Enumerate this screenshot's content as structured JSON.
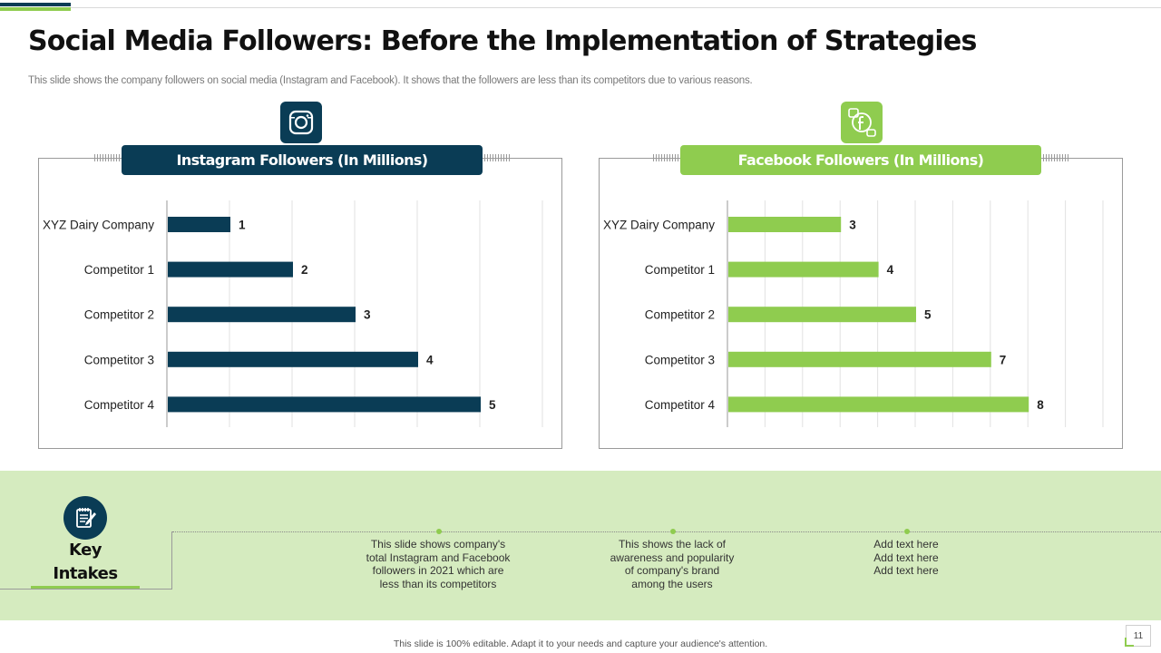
{
  "slide": {
    "title": "Social Media Followers: Before the Implementation of Strategies",
    "subtitle": "This slide shows the company followers on social media (Instagram and Facebook). It shows that the followers are less than its competitors due to various reasons.",
    "footer": "This slide is 100% editable.  Adapt it to your needs and capture your audience's attention.",
    "page_number": "11"
  },
  "colors": {
    "dark": "#0a3c55",
    "green": "#8fcc4f",
    "band": "#d5ebbf"
  },
  "icons": {
    "instagram": "instagram-icon",
    "facebook": "facebook-chat-icon",
    "key": "notepad-pen-icon"
  },
  "chart_data": [
    {
      "type": "bar",
      "orientation": "horizontal",
      "title": "Instagram Followers (In Millions)",
      "categories": [
        "XYZ Dairy Company",
        "Competitor 1",
        "Competitor 2",
        "Competitor 3",
        "Competitor 4"
      ],
      "values": [
        1,
        2,
        3,
        4,
        5
      ],
      "xlim": [
        0,
        6
      ],
      "grid": true,
      "color": "#0a3c55"
    },
    {
      "type": "bar",
      "orientation": "horizontal",
      "title": "Facebook Followers (In Millions)",
      "categories": [
        "XYZ Dairy Company",
        "Competitor 1",
        "Competitor 2",
        "Competitor 3",
        "Competitor 4"
      ],
      "values": [
        3,
        4,
        5,
        7,
        8
      ],
      "xlim": [
        0,
        10
      ],
      "grid": true,
      "color": "#8fcc4f"
    }
  ],
  "key_intakes": {
    "title_line1": "Key",
    "title_line2": "Intakes",
    "items": [
      [
        "This slide shows company's",
        "total Instagram and Facebook",
        "followers in 2021 which are",
        "less than its competitors"
      ],
      [
        "This shows the lack of",
        "awareness and popularity",
        "of company's brand",
        "among the users"
      ],
      [
        "Add text here",
        "Add text here",
        "Add text here"
      ]
    ]
  }
}
